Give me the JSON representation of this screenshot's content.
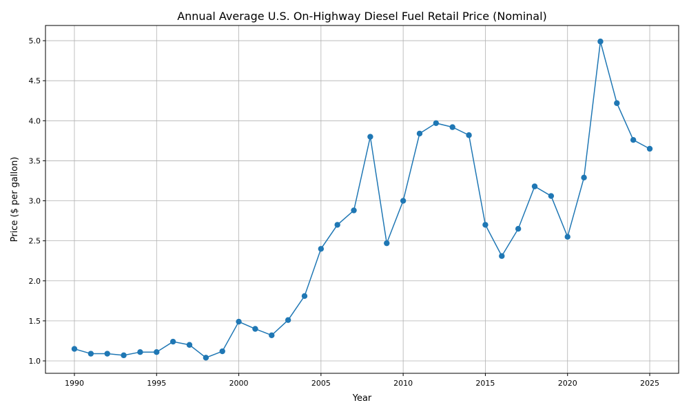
{
  "chart_data": {
    "type": "line",
    "title": "Annual Average U.S. On-Highway Diesel Fuel Retail Price (Nominal)",
    "xlabel": "Year",
    "ylabel": "Price ($ per gallon)",
    "xlim": [
      1988.24,
      2026.76
    ],
    "ylim": [
      0.845,
      5.19
    ],
    "xticks": [
      1990,
      1995,
      2000,
      2005,
      2010,
      2015,
      2020,
      2025
    ],
    "yticks": [
      "1.0",
      "1.5",
      "2.0",
      "2.5",
      "3.0",
      "3.5",
      "4.0",
      "4.5",
      "5.0"
    ],
    "grid": true,
    "marker": "circle",
    "color": "#1f77b4",
    "x": [
      1990,
      1991,
      1992,
      1993,
      1994,
      1995,
      1996,
      1997,
      1998,
      1999,
      2000,
      2001,
      2002,
      2003,
      2004,
      2005,
      2006,
      2007,
      2008,
      2009,
      2010,
      2011,
      2012,
      2013,
      2014,
      2015,
      2016,
      2017,
      2018,
      2019,
      2020,
      2021,
      2022,
      2023,
      2024,
      2025
    ],
    "values": [
      1.15,
      1.09,
      1.09,
      1.07,
      1.11,
      1.11,
      1.24,
      1.2,
      1.04,
      1.12,
      1.49,
      1.4,
      1.32,
      1.51,
      1.81,
      2.4,
      2.7,
      2.88,
      3.8,
      2.47,
      3.0,
      3.84,
      3.97,
      3.92,
      3.82,
      2.7,
      2.31,
      2.65,
      3.18,
      3.06,
      2.55,
      3.29,
      4.99,
      4.22,
      3.76,
      3.65
    ]
  }
}
